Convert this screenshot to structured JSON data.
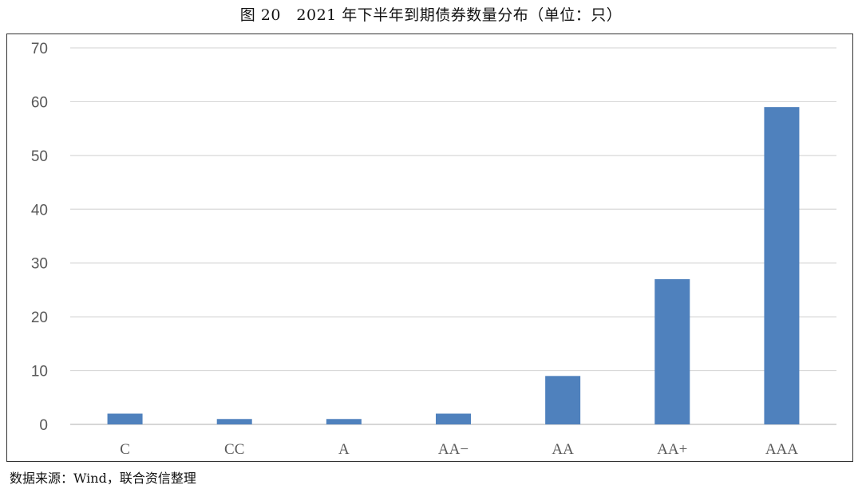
{
  "title": "图 20　2021 年下半年到期债券数量分布（单位：只）",
  "source": "数据来源：Wind，联合资信整理",
  "chart_data": {
    "type": "bar",
    "title": "图 20　2021 年下半年到期债券数量分布（单位：只）",
    "xlabel": "",
    "ylabel": "",
    "categories": [
      "C",
      "CC",
      "A",
      "AA−",
      "AA",
      "AA+",
      "AAA"
    ],
    "values": [
      2,
      1,
      1,
      2,
      9,
      27,
      59
    ],
    "ylim": [
      0,
      70
    ],
    "yticks": [
      0,
      10,
      20,
      30,
      40,
      50,
      60,
      70
    ],
    "grid": true,
    "legend": "none",
    "bar_color": "#4f81bd",
    "grid_color": "#d9d9d9"
  }
}
